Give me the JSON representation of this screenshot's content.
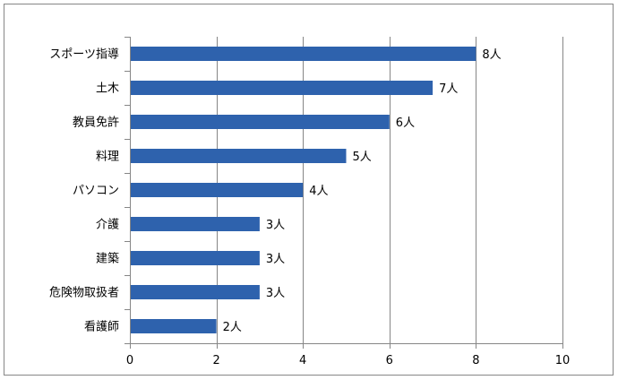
{
  "chart_data": {
    "type": "bar",
    "orientation": "horizontal",
    "title": "",
    "xlabel": "",
    "ylabel": "",
    "categories": [
      "スポーツ指導",
      "土木",
      "教員免許",
      "料理",
      "パソコン",
      "介護",
      "建築",
      "危険物取扱者",
      "看護師"
    ],
    "values": [
      8,
      7,
      6,
      5,
      4,
      3,
      3,
      3,
      2
    ],
    "data_labels": [
      "8人",
      "7人",
      "6人",
      "5人",
      "4人",
      "3人",
      "3人",
      "3人",
      "2人"
    ],
    "xlim": [
      0,
      10
    ],
    "x_ticks": [
      "0",
      "2",
      "4",
      "6",
      "8",
      "10"
    ],
    "tick_values": [
      0,
      2,
      4,
      6,
      8,
      10
    ],
    "grid": "vertical",
    "legend": "none",
    "bar_color": "#2E62AD",
    "gridline_color": "#868686"
  }
}
